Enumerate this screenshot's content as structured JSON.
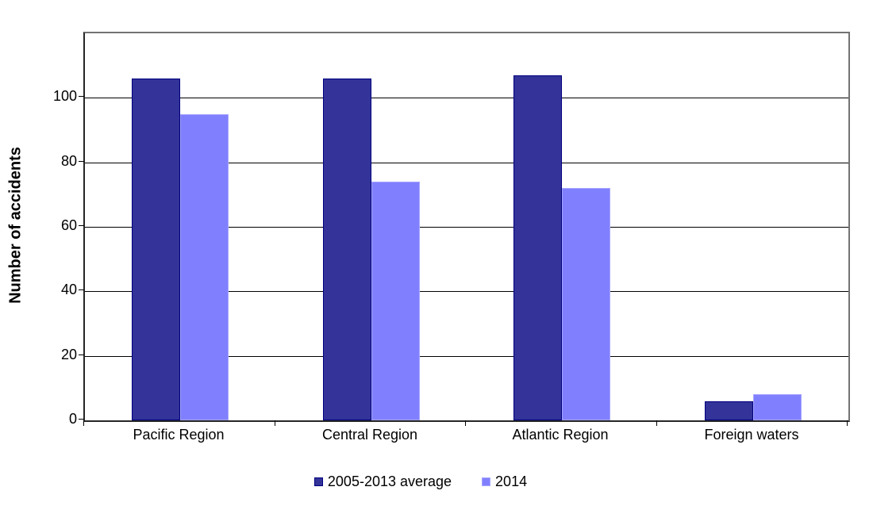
{
  "chart_data": {
    "type": "bar",
    "title": "",
    "ylabel": "Number of accidents",
    "xlabel": "",
    "categories": [
      "Pacific Region",
      "Central Region",
      "Atlantic Region",
      "Foreign waters"
    ],
    "series": [
      {
        "name": "2005-2013 average",
        "values": [
          106,
          106,
          107,
          6
        ],
        "fill": "#333399",
        "border": "#000080"
      },
      {
        "name": "2014",
        "values": [
          95,
          74,
          72,
          8
        ],
        "fill": "#8080FF",
        "border": "#A6A6FF"
      }
    ],
    "ylim": [
      0,
      120
    ],
    "yticks": [
      0,
      20,
      40,
      60,
      80,
      100
    ],
    "grid": true,
    "gridline_color": "#000000",
    "plot_border_color": "#737373",
    "axis_line_color": "#262626",
    "background_color": "#FFFFFF",
    "text_color": "#000000",
    "legend_position": "bottom"
  }
}
